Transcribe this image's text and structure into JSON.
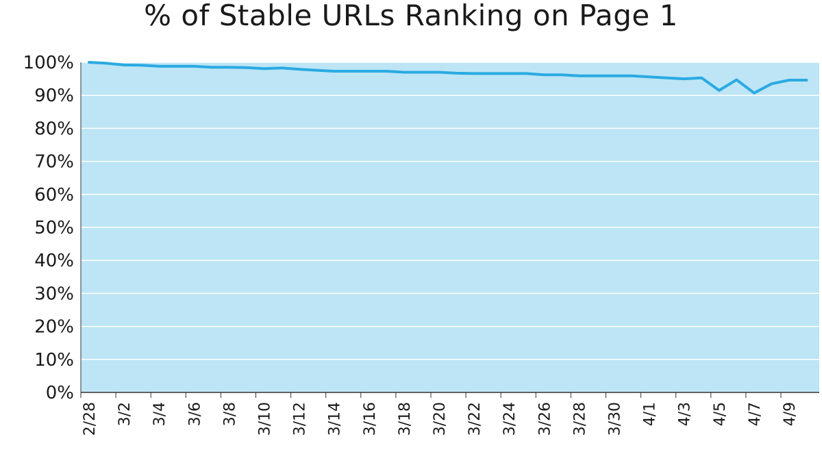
{
  "chart_data": {
    "type": "area",
    "title": "% of Stable URLs Ranking on Page 1",
    "xlabel": "",
    "ylabel": "",
    "ylim": [
      0,
      100
    ],
    "y_tick_labels": [
      "0%",
      "10%",
      "20%",
      "30%",
      "40%",
      "50%",
      "60%",
      "70%",
      "80%",
      "90%",
      "100%"
    ],
    "x_tick_labels": [
      "2/28",
      "3/2",
      "3/4",
      "3/6",
      "3/8",
      "3/10",
      "3/12",
      "3/14",
      "3/16",
      "3/18",
      "3/20",
      "3/22",
      "3/24",
      "3/26",
      "3/28",
      "3/30",
      "4/1",
      "4/3",
      "4/5",
      "4/7",
      "4/9"
    ],
    "grid": true,
    "colors": {
      "line": "#2aaae2",
      "fill": "#bde5f5",
      "grid": "#ffffff",
      "axis": "#333333"
    },
    "x": [
      "2/28",
      "3/1",
      "3/2",
      "3/3",
      "3/4",
      "3/5",
      "3/6",
      "3/7",
      "3/8",
      "3/9",
      "3/10",
      "3/11",
      "3/12",
      "3/13",
      "3/14",
      "3/15",
      "3/16",
      "3/17",
      "3/18",
      "3/19",
      "3/20",
      "3/21",
      "3/22",
      "3/23",
      "3/24",
      "3/25",
      "3/26",
      "3/27",
      "3/28",
      "3/29",
      "3/30",
      "3/31",
      "4/1",
      "4/2",
      "4/3",
      "4/4",
      "4/5",
      "4/6",
      "4/7",
      "4/8",
      "4/9",
      "4/10"
    ],
    "values": [
      100,
      99.7,
      99.2,
      99.1,
      98.8,
      98.8,
      98.8,
      98.5,
      98.5,
      98.4,
      98.1,
      98.3,
      97.9,
      97.6,
      97.3,
      97.3,
      97.3,
      97.3,
      97.0,
      97.0,
      97.0,
      96.7,
      96.6,
      96.6,
      96.6,
      96.6,
      96.2,
      96.2,
      95.9,
      95.9,
      95.9,
      95.9,
      95.6,
      95.3,
      95.0,
      95.3,
      91.5,
      94.7,
      90.7,
      93.5,
      94.6,
      94.6
    ]
  }
}
